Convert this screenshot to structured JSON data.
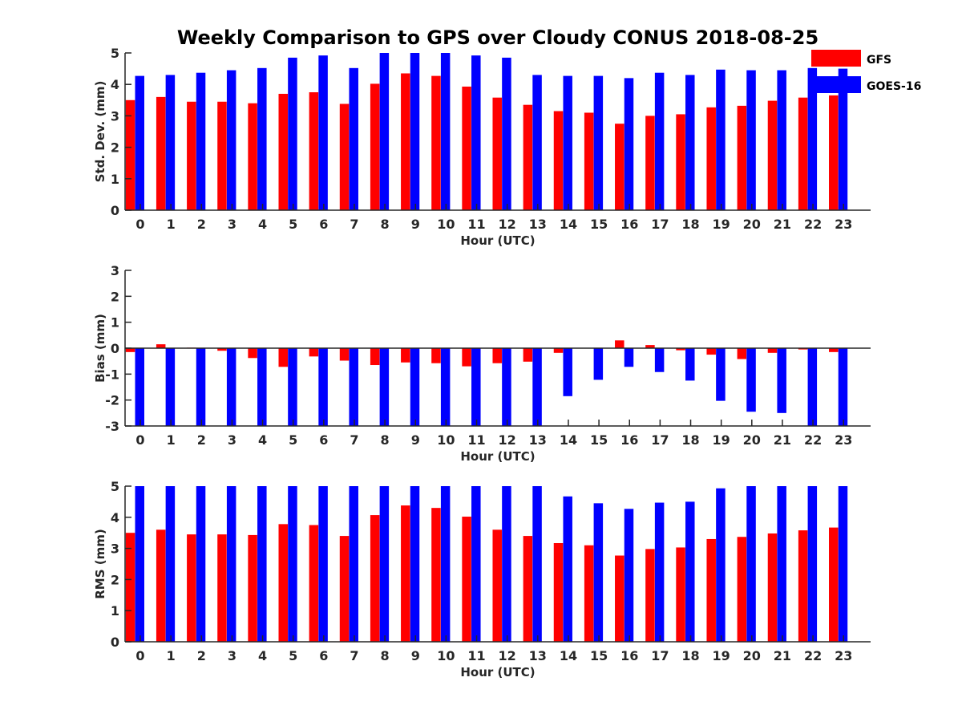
{
  "figure_title": "Weekly Comparison to GPS over Cloudy CONUS 2018-08-25",
  "legend": [
    {
      "name": "GFS",
      "color": "#ff0000"
    },
    {
      "name": "GOES-16",
      "color": "#0000ff"
    }
  ],
  "chart_data": [
    {
      "type": "bar",
      "title": "Weekly Comparison to GPS over Cloudy CONUS 2018-08-25",
      "xlabel": "Hour (UTC)",
      "ylabel": "Std. Dev. (mm)",
      "ylim": [
        0,
        5
      ],
      "yticks": [
        0,
        1,
        2,
        3,
        4,
        5
      ],
      "categories": [
        "0",
        "1",
        "2",
        "3",
        "4",
        "5",
        "6",
        "7",
        "8",
        "9",
        "10",
        "11",
        "12",
        "13",
        "14",
        "15",
        "16",
        "17",
        "18",
        "19",
        "20",
        "21",
        "22",
        "23"
      ],
      "series": [
        {
          "name": "GFS",
          "color": "#ff0000",
          "values": [
            3.5,
            3.6,
            3.45,
            3.45,
            3.4,
            3.7,
            3.75,
            3.38,
            4.02,
            4.35,
            4.27,
            3.93,
            3.58,
            3.35,
            3.15,
            3.1,
            2.75,
            3.0,
            3.05,
            3.27,
            3.32,
            3.48,
            3.58,
            3.65
          ]
        },
        {
          "name": "GOES-16",
          "color": "#0000ff",
          "values": [
            4.27,
            4.3,
            4.37,
            4.45,
            4.52,
            4.85,
            4.92,
            4.52,
            5.0,
            5.0,
            5.0,
            4.92,
            4.85,
            4.3,
            4.27,
            4.27,
            4.2,
            4.37,
            4.3,
            4.47,
            4.45,
            4.45,
            4.52,
            4.5
          ]
        }
      ],
      "legend": "top-right"
    },
    {
      "type": "bar",
      "xlabel": "Hour (UTC)",
      "ylabel": "Bias (mm)",
      "ylim": [
        -3,
        3
      ],
      "yticks": [
        -3,
        -2,
        -1,
        0,
        1,
        2,
        3
      ],
      "zero_line": true,
      "categories": [
        "0",
        "1",
        "2",
        "3",
        "4",
        "5",
        "6",
        "7",
        "8",
        "9",
        "10",
        "11",
        "12",
        "13",
        "14",
        "15",
        "16",
        "17",
        "18",
        "19",
        "20",
        "21",
        "22",
        "23"
      ],
      "series": [
        {
          "name": "GFS",
          "color": "#ff0000",
          "values": [
            -0.15,
            0.15,
            0.02,
            -0.1,
            -0.38,
            -0.72,
            -0.32,
            -0.48,
            -0.65,
            -0.55,
            -0.58,
            -0.7,
            -0.58,
            -0.52,
            -0.18,
            0.0,
            0.3,
            0.12,
            -0.08,
            -0.25,
            -0.42,
            -0.18,
            -0.05,
            -0.15
          ]
        },
        {
          "name": "GOES-16",
          "color": "#0000ff",
          "values": [
            -3.0,
            -3.0,
            -3.0,
            -3.0,
            -3.0,
            -3.0,
            -3.0,
            -3.0,
            -3.0,
            -3.0,
            -3.0,
            -3.0,
            -3.0,
            -3.0,
            -1.85,
            -1.22,
            -0.72,
            -0.92,
            -1.25,
            -2.03,
            -2.45,
            -2.5,
            -3.0,
            -3.0
          ]
        }
      ]
    },
    {
      "type": "bar",
      "xlabel": "Hour (UTC)",
      "ylabel": "RMS (mm)",
      "ylim": [
        0,
        5
      ],
      "yticks": [
        0,
        1,
        2,
        3,
        4,
        5
      ],
      "categories": [
        "0",
        "1",
        "2",
        "3",
        "4",
        "5",
        "6",
        "7",
        "8",
        "9",
        "10",
        "11",
        "12",
        "13",
        "14",
        "15",
        "16",
        "17",
        "18",
        "19",
        "20",
        "21",
        "22",
        "23"
      ],
      "series": [
        {
          "name": "GFS",
          "color": "#ff0000",
          "values": [
            3.5,
            3.6,
            3.45,
            3.45,
            3.43,
            3.78,
            3.75,
            3.4,
            4.07,
            4.38,
            4.3,
            4.02,
            3.6,
            3.4,
            3.17,
            3.1,
            2.77,
            2.98,
            3.03,
            3.3,
            3.37,
            3.48,
            3.58,
            3.67
          ]
        },
        {
          "name": "GOES-16",
          "color": "#0000ff",
          "values": [
            5.0,
            5.0,
            5.0,
            5.0,
            5.0,
            5.0,
            5.0,
            5.0,
            5.0,
            5.0,
            5.0,
            5.0,
            5.0,
            5.0,
            4.67,
            4.45,
            4.27,
            4.47,
            4.5,
            4.93,
            5.0,
            5.0,
            5.0,
            5.0
          ]
        }
      ]
    }
  ]
}
